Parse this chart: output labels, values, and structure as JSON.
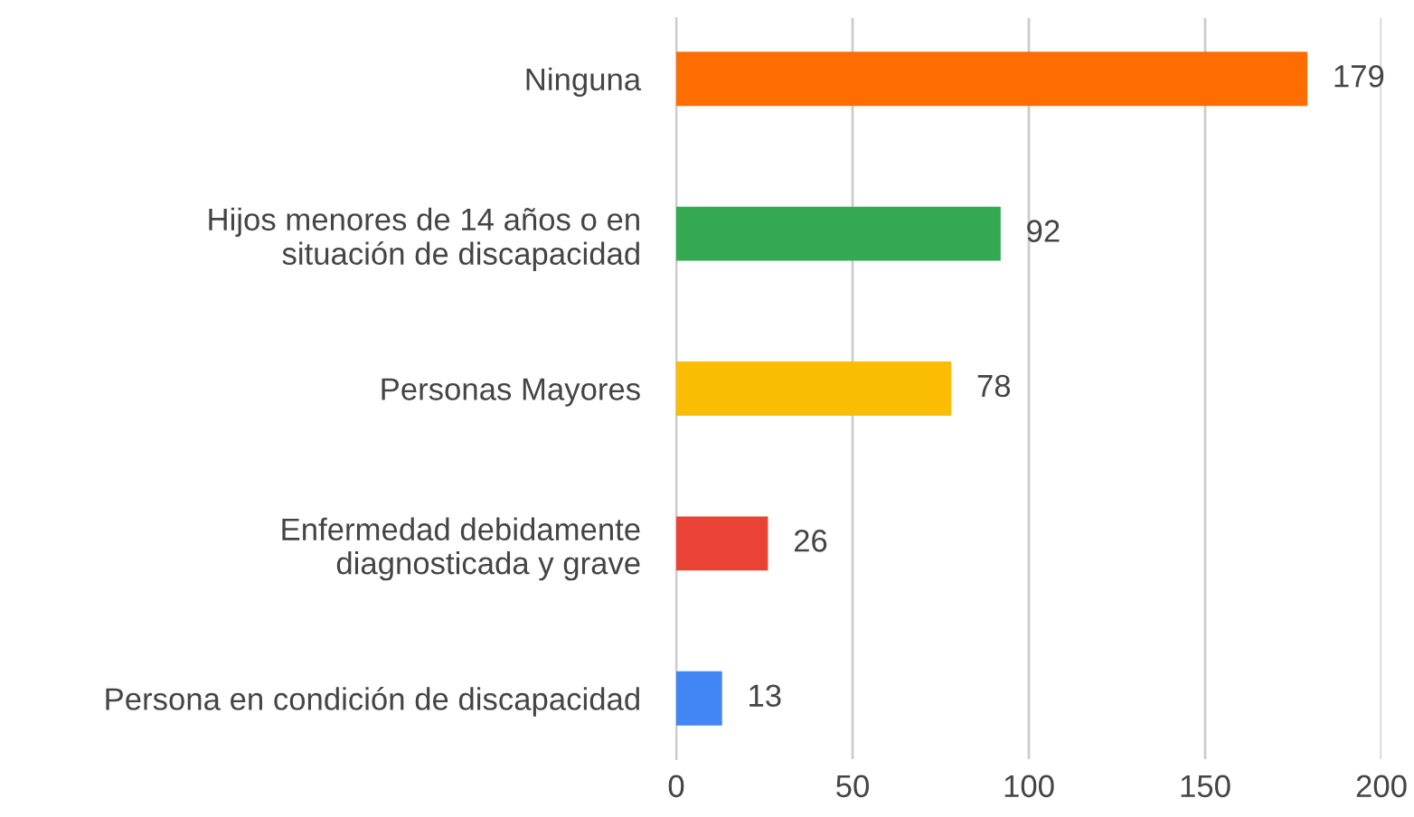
{
  "chart_data": {
    "type": "bar",
    "orientation": "horizontal",
    "categories": [
      "Ninguna",
      "Hijos menores de 14 años o en\nsituación de discapacidad",
      "Personas Mayores",
      "Enfermedad debidamente\ndiagnosticada y grave",
      "Persona en condición de discapacidad"
    ],
    "values": [
      179,
      92,
      78,
      26,
      13
    ],
    "colors": [
      "#ff6d01",
      "#34a853",
      "#fbbc04",
      "#ea4335",
      "#4285f4"
    ],
    "xlim": [
      0,
      200
    ],
    "xticks": [
      0,
      50,
      100,
      150,
      200
    ],
    "grid": "x",
    "data_labels": true
  }
}
